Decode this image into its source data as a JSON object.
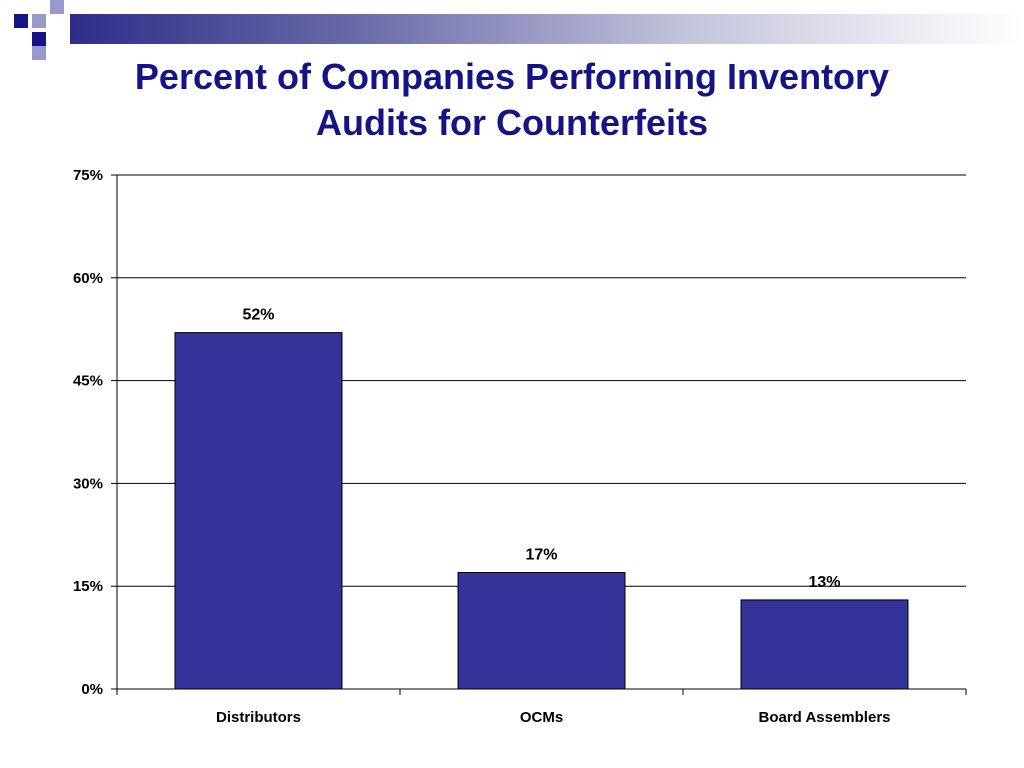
{
  "slide": {
    "title_line1": "Percent of Companies Performing Inventory",
    "title_line2": "Audits for Counterfeits"
  },
  "colors": {
    "title": "#141484",
    "bar": "#333399",
    "deco_dark": "#141484",
    "deco_light": "#9999cc"
  },
  "chart_data": {
    "type": "bar",
    "categories": [
      "Distributors",
      "OCMs",
      "Board Assemblers"
    ],
    "values": [
      52,
      17,
      13
    ],
    "data_labels": [
      "52%",
      "17%",
      "13%"
    ],
    "y_ticks": [
      "0%",
      "15%",
      "30%",
      "45%",
      "60%",
      "75%"
    ],
    "ylim": [
      0,
      75
    ],
    "y_step": 15,
    "grid": true,
    "legend": "none",
    "xlabel": "",
    "ylabel": ""
  }
}
